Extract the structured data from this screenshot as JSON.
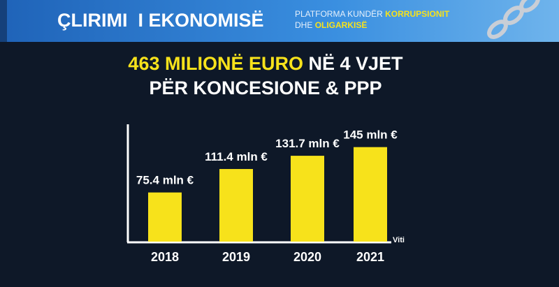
{
  "header": {
    "title": "ÇLIRIMI  I EKONOMISË",
    "tagline_1": "PLATFORMA KUNDËR",
    "tagline_1_highlight": "KORRUPSIONIT",
    "tagline_2": "DHE",
    "tagline_2_highlight": "OLIGARKISË"
  },
  "chart_data": {
    "type": "bar",
    "title_highlight": "463 MILIONË EURO",
    "title": "NË 4 VJET",
    "subtitle": "PËR KONCESIONE & PPP",
    "x_label": "Viti",
    "categories": [
      "2018",
      "2019",
      "2020",
      "2021"
    ],
    "values": [
      75.4,
      111.4,
      131.7,
      145
    ],
    "value_labels": [
      "75.4 mln €",
      "111.4 mln €",
      "131.7 mln €",
      "145 mln €"
    ],
    "color": "#f7e21b",
    "ylim": [
      0,
      180
    ]
  }
}
